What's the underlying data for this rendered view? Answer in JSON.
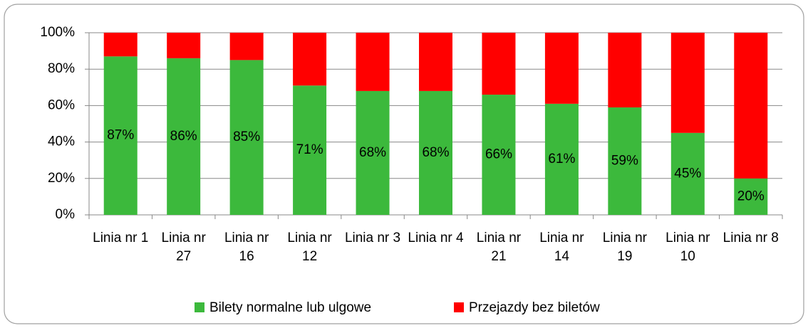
{
  "chart_data": {
    "type": "stacked_bar",
    "categories": [
      "Linia nr 1",
      "Linia nr 27",
      "Linia nr 16",
      "Linia nr 12",
      "Linia nr 3",
      "Linia nr 4",
      "Linia nr 21",
      "Linia nr 14",
      "Linia nr 19",
      "Linia nr 10",
      "Linia nr 8"
    ],
    "series": [
      {
        "name": "Bilety normalne lub ulgowe",
        "color": "#3cb93c",
        "values": [
          87,
          86,
          85,
          71,
          68,
          68,
          66,
          61,
          59,
          45,
          20
        ],
        "value_labels": [
          "87%",
          "86%",
          "85%",
          "71%",
          "68%",
          "68%",
          "66%",
          "61%",
          "59%",
          "45%",
          "20%"
        ]
      },
      {
        "name": "Przejazdy bez biletów",
        "color": "#ff0000",
        "values": [
          13,
          14,
          15,
          29,
          32,
          32,
          34,
          39,
          41,
          55,
          80
        ]
      }
    ],
    "ylim": [
      0,
      100
    ],
    "yticks": [
      {
        "value": 0,
        "label": "0%"
      },
      {
        "value": 20,
        "label": "20%"
      },
      {
        "value": 40,
        "label": "40%"
      },
      {
        "value": 60,
        "label": "60%"
      },
      {
        "value": 80,
        "label": "80%"
      },
      {
        "value": 100,
        "label": "100%"
      }
    ],
    "grid": true,
    "legend": "bottom"
  }
}
